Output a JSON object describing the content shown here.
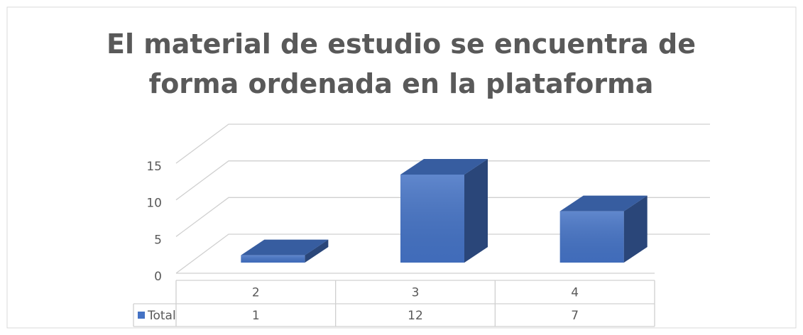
{
  "chart_data": {
    "type": "bar3d",
    "title": "El material de estudio se encuentra de forma ordenada en la plataforma",
    "categories": [
      "2",
      "3",
      "4"
    ],
    "series": [
      {
        "name": "Total",
        "color": "#4472c4",
        "values": [
          1,
          12,
          7
        ]
      }
    ],
    "ylim": [
      0,
      15
    ],
    "yticks": [
      0,
      5,
      10,
      15
    ],
    "grid": true,
    "legend": "bottom-left",
    "data_table": true
  }
}
